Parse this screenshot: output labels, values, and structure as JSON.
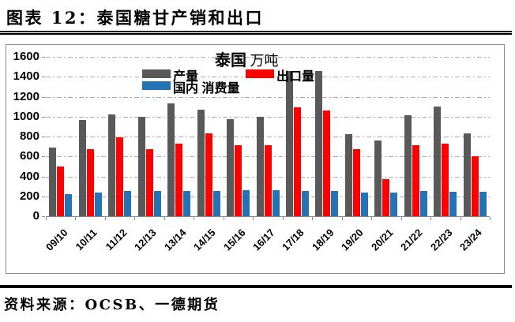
{
  "header": {
    "title": "图表 12：泰国糖甘产销和出口"
  },
  "footer": {
    "source": "资料来源：OCSB、一德期货"
  },
  "chart_data": {
    "type": "bar",
    "title_main": "泰国",
    "title_unit": "万吨",
    "categories": [
      "09/10",
      "10/11",
      "11/12",
      "12/13",
      "13/14",
      "14/15",
      "15/16",
      "16/17",
      "17/18",
      "18/19",
      "19/20",
      "20/21",
      "21/22",
      "22/23",
      "23/24"
    ],
    "series": [
      {
        "name": "产量",
        "color": "#595959",
        "values": [
          690,
          965,
          1020,
          1000,
          1130,
          1070,
          975,
          1000,
          1460,
          1455,
          820,
          760,
          1010,
          1100,
          830
        ]
      },
      {
        "name": "出口量",
        "color": "#FE0000",
        "values": [
          500,
          670,
          795,
          670,
          730,
          830,
          710,
          710,
          1090,
          1065,
          670,
          370,
          710,
          730,
          605
        ]
      },
      {
        "name": "国内 消费量",
        "color": "#2473B5",
        "values": [
          220,
          240,
          255,
          255,
          250,
          255,
          265,
          265,
          255,
          250,
          240,
          240,
          250,
          245,
          245
        ]
      }
    ],
    "ylim": [
      0,
      1600
    ],
    "ytick_step": 200,
    "grid": "dash-dot",
    "legend_position": "top-inside"
  }
}
